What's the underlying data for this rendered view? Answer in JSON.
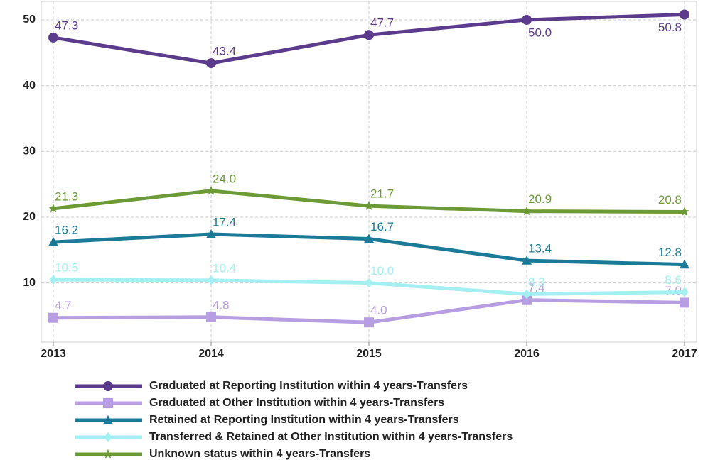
{
  "chart_data": {
    "type": "line",
    "categories": [
      "2013",
      "2014",
      "2015",
      "2016",
      "2017"
    ],
    "ylim": [
      1,
      52.8
    ],
    "yticks": [
      10,
      20,
      30,
      40,
      50
    ],
    "grid": true,
    "series": [
      {
        "name": "Graduated at Reporting Institution within 4 years-Transfers",
        "color": "#5c3a8c",
        "marker": "circle",
        "values": [
          47.3,
          43.4,
          47.7,
          50.0,
          50.8
        ],
        "value_labels": [
          "47.3",
          "43.4",
          "47.7",
          "50.0",
          "50.8"
        ]
      },
      {
        "name": "Graduated at Other Institution within 4 years-Transfers",
        "color": "#b79de2",
        "marker": "square",
        "values": [
          4.7,
          4.8,
          4.0,
          7.4,
          7.0
        ],
        "value_labels": [
          "4.7",
          "4.8",
          "4.0",
          "7.4",
          "7.0"
        ]
      },
      {
        "name": "Retained at Reporting Institution within 4 years-Transfers",
        "color": "#1b7a97",
        "marker": "triangle",
        "values": [
          16.2,
          17.4,
          16.7,
          13.4,
          12.8
        ],
        "value_labels": [
          "16.2",
          "17.4",
          "16.7",
          "13.4",
          "12.8"
        ]
      },
      {
        "name": "Transferred & Retained at Other Institution within 4 years-Transfers",
        "color": "#a3eff2",
        "marker": "diamond",
        "values": [
          10.5,
          10.4,
          10.0,
          8.3,
          8.6
        ],
        "value_labels": [
          "10.5",
          "10.4",
          "10.0",
          "8.3",
          "8.6"
        ]
      },
      {
        "name": "Unknown status within 4 years-Transfers",
        "color": "#6b9a36",
        "marker": "star",
        "values": [
          21.3,
          24.0,
          21.7,
          20.9,
          20.8
        ],
        "value_labels": [
          "21.3",
          "24.0",
          "21.7",
          "20.9",
          "20.8"
        ]
      }
    ]
  }
}
